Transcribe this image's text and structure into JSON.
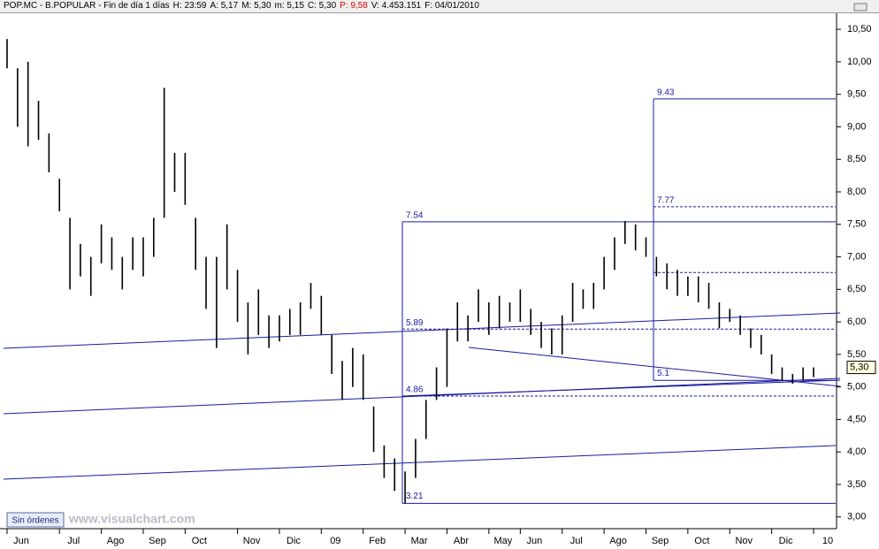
{
  "chart_data": {
    "type": "ohlc",
    "header": [
      "POP.MC - B.POPULAR - Fin de día 1 días",
      "H: 23:59",
      "A: 5,17",
      "M: 5,30",
      "m: 5,15",
      "C: 5,30",
      "P: 9,58",
      "V: 4.453.151",
      "F: 04/01/2010"
    ],
    "categories": [
      "Jun",
      null,
      null,
      null,
      null,
      "Jul",
      null,
      null,
      null,
      "Ago",
      null,
      null,
      null,
      "Sep",
      null,
      null,
      null,
      "Oct",
      null,
      null,
      null,
      null,
      "Nov",
      null,
      null,
      null,
      "Dic",
      null,
      null,
      null,
      "09",
      null,
      null,
      null,
      "Feb",
      null,
      null,
      null,
      "Mar",
      null,
      null,
      null,
      "Abr",
      null,
      null,
      null,
      "May",
      null,
      null,
      "Jun",
      null,
      null,
      null,
      "Jul",
      null,
      null,
      null,
      "Ago",
      null,
      null,
      null,
      "Sep",
      null,
      null,
      null,
      "Oct",
      null,
      null,
      null,
      "Nov",
      null,
      null,
      null,
      "Dic",
      null,
      null,
      null,
      "10"
    ],
    "high": [
      10.35,
      9.9,
      10.0,
      9.4,
      8.9,
      8.2,
      7.6,
      7.2,
      7.0,
      7.5,
      7.3,
      7.0,
      7.3,
      7.3,
      7.6,
      9.6,
      8.6,
      8.6,
      7.6,
      7.0,
      7.0,
      7.5,
      6.8,
      6.3,
      6.5,
      6.1,
      6.1,
      6.2,
      6.3,
      6.6,
      6.4,
      5.8,
      5.4,
      5.6,
      5.5,
      4.7,
      4.1,
      3.9,
      3.7,
      4.2,
      4.8,
      5.3,
      5.9,
      6.3,
      6.1,
      6.5,
      6.3,
      6.4,
      6.3,
      6.5,
      6.2,
      6.0,
      5.9,
      6.1,
      6.6,
      6.5,
      6.6,
      7.0,
      7.3,
      7.55,
      7.5,
      7.3,
      7.0,
      6.9,
      6.8,
      6.7,
      6.7,
      6.6,
      6.3,
      6.2,
      6.1,
      5.9,
      5.8,
      5.5,
      5.3,
      5.2,
      5.3,
      5.3
    ],
    "low": [
      9.9,
      9.0,
      8.7,
      8.8,
      8.3,
      7.7,
      6.5,
      6.7,
      6.4,
      6.9,
      6.8,
      6.5,
      6.8,
      6.7,
      7.0,
      7.6,
      8.0,
      7.8,
      6.8,
      6.2,
      5.6,
      6.5,
      6.0,
      5.5,
      5.8,
      5.6,
      5.7,
      5.8,
      5.8,
      6.2,
      5.8,
      5.2,
      4.8,
      5.0,
      4.8,
      4.0,
      3.6,
      3.4,
      3.21,
      3.6,
      4.2,
      4.8,
      5.0,
      5.7,
      5.7,
      6.0,
      5.8,
      5.9,
      6.0,
      6.0,
      5.8,
      5.6,
      5.5,
      5.5,
      6.0,
      6.2,
      6.2,
      6.5,
      6.8,
      7.2,
      7.1,
      7.0,
      6.7,
      6.5,
      6.4,
      6.4,
      6.3,
      6.2,
      5.9,
      6.0,
      5.8,
      5.6,
      5.5,
      5.2,
      5.1,
      5.05,
      5.1,
      5.15
    ],
    "color": "#000000",
    "ylim": [
      2.82,
      10.76
    ],
    "yticks": [
      {
        "value": 3.0,
        "label": "3,00"
      },
      {
        "value": 3.5,
        "label": "3,50"
      },
      {
        "value": 4.0,
        "label": "4,00"
      },
      {
        "value": 4.5,
        "label": "4,50"
      },
      {
        "value": 5.0,
        "label": "5,00"
      },
      {
        "value": 5.5,
        "label": "5,50"
      },
      {
        "value": 6.0,
        "label": "6,00"
      },
      {
        "value": 6.5,
        "label": "6,50"
      },
      {
        "value": 7.0,
        "label": "7,00"
      },
      {
        "value": 7.5,
        "label": "7,50"
      },
      {
        "value": 8.0,
        "label": "8,00"
      },
      {
        "value": 8.5,
        "label": "8,50"
      },
      {
        "value": 9.0,
        "label": "9,00"
      },
      {
        "value": 9.5,
        "label": "9,50"
      },
      {
        "value": 10.0,
        "label": "10,00"
      },
      {
        "value": 10.5,
        "label": "10,50"
      }
    ],
    "last_price": {
      "value": 5.3,
      "label": "5,30"
    },
    "fib_boxes": [
      {
        "top": 7.54,
        "bottom": 3.21,
        "levels": [
          5.89,
          4.86
        ]
      },
      {
        "top": 9.43,
        "bottom": 5.1,
        "levels": [
          7.77,
          6.76
        ]
      }
    ],
    "status_button": "Sin órdenes",
    "watermark": "www.visualchart.com"
  }
}
